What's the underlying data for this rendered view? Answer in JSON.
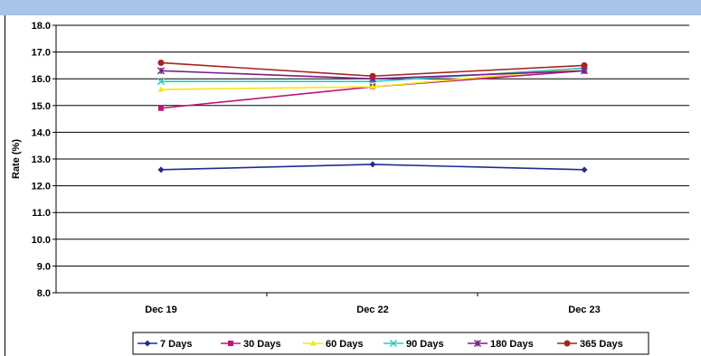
{
  "chart_data": {
    "type": "line",
    "title": "",
    "xlabel": "",
    "ylabel": "Rate (%)",
    "categories": [
      "Dec 19",
      "Dec 22",
      "Dec 23"
    ],
    "ylim": [
      8.0,
      18.0
    ],
    "yticks": [
      "8.0",
      "9.0",
      "10.0",
      "11.0",
      "12.0",
      "13.0",
      "14.0",
      "15.0",
      "16.0",
      "17.0",
      "18.0"
    ],
    "grid": "horizontal",
    "legend_position": "bottom",
    "series": [
      {
        "name": "7 Days",
        "values": [
          12.6,
          12.8,
          12.6
        ],
        "color": "#1f2d8f",
        "marker": "diamond"
      },
      {
        "name": "30 Days",
        "values": [
          14.9,
          15.7,
          16.3
        ],
        "color": "#c0157a",
        "marker": "square"
      },
      {
        "name": "60 Days",
        "values": [
          15.6,
          15.7,
          16.4
        ],
        "color": "#f5e614",
        "marker": "triangle"
      },
      {
        "name": "90 Days",
        "values": [
          15.9,
          15.9,
          16.4
        ],
        "color": "#2ec8c0",
        "marker": "x"
      },
      {
        "name": "180 Days",
        "values": [
          16.3,
          16.0,
          16.3
        ],
        "color": "#7a1f8a",
        "marker": "asterisk"
      },
      {
        "name": "365  Days",
        "values": [
          16.6,
          16.1,
          16.5
        ],
        "color": "#a5241f",
        "marker": "circle"
      }
    ]
  }
}
